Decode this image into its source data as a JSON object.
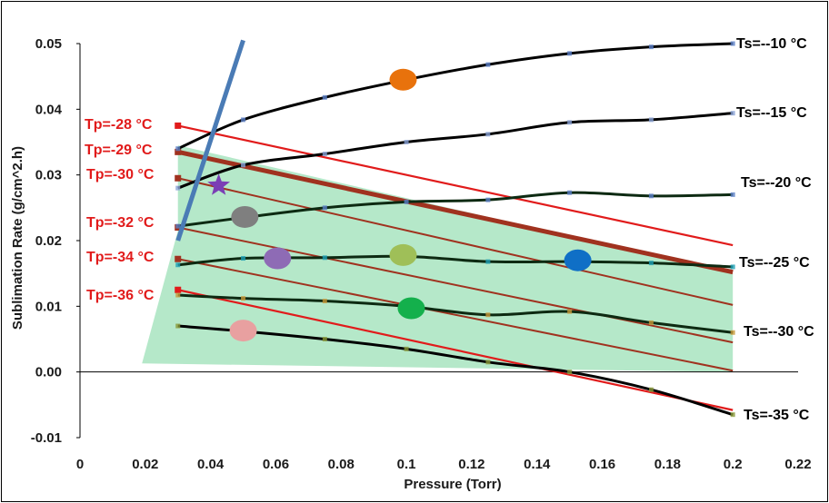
{
  "chart_data": {
    "type": "scatter",
    "xlabel": "Pressure (Torr)",
    "ylabel": "Sublimation Rate (g/cm^2.h)",
    "xlim": [
      0,
      0.22
    ],
    "ylim": [
      -0.01,
      0.05
    ],
    "x_ticks": [
      "0",
      "0.02",
      "0.04",
      "0.06",
      "0.08",
      "0.1",
      "0.12",
      "0.14",
      "0.16",
      "0.18",
      "0.2",
      "0.22"
    ],
    "y_ticks": [
      "-0.01",
      "0.00",
      "0.01",
      "0.02",
      "0.03",
      "0.04",
      "0.05"
    ],
    "grid": false,
    "colors": {
      "ts_curve": "#000000",
      "tp_line": "#e11b1b",
      "tp_line_dark": "#a0321f",
      "region_fill": "#a8e4c0",
      "choke_line": "#4a7bb5",
      "marker_ts": "#6b8cc8"
    },
    "feasible_region": [
      [
        0.019,
        0.0013
      ],
      [
        0.03,
        0.0215
      ],
      [
        0.03,
        0.0345
      ],
      [
        0.2,
        0.015
      ],
      [
        0.2,
        0.0
      ]
    ],
    "choke_line": {
      "x": [
        0.03,
        0.05
      ],
      "y": [
        0.02,
        0.0505
      ]
    },
    "ts_series": [
      {
        "name": "Ts=--10 °C",
        "x": [
          0.03,
          0.05,
          0.075,
          0.1,
          0.125,
          0.15,
          0.175,
          0.2
        ],
        "y": [
          0.034,
          0.0384,
          0.0418,
          0.0445,
          0.0468,
          0.0485,
          0.0495,
          0.05
        ]
      },
      {
        "name": "Ts=--15 °C",
        "x": [
          0.03,
          0.05,
          0.075,
          0.1,
          0.125,
          0.15,
          0.175,
          0.2
        ],
        "y": [
          0.028,
          0.0315,
          0.0332,
          0.035,
          0.0362,
          0.038,
          0.0384,
          0.0394
        ]
      },
      {
        "name": "Ts=--20 °C",
        "x": [
          0.03,
          0.05,
          0.075,
          0.1,
          0.125,
          0.15,
          0.175,
          0.2
        ],
        "y": [
          0.0222,
          0.0235,
          0.025,
          0.0259,
          0.0262,
          0.0273,
          0.0268,
          0.027
        ]
      },
      {
        "name": "Ts=--25 °C",
        "x": [
          0.03,
          0.05,
          0.075,
          0.1,
          0.125,
          0.15,
          0.175,
          0.2
        ],
        "y": [
          0.0163,
          0.0173,
          0.0174,
          0.0176,
          0.0168,
          0.0168,
          0.0166,
          0.016
        ]
      },
      {
        "name": "Ts=--30 °C",
        "x": [
          0.03,
          0.05,
          0.075,
          0.1,
          0.125,
          0.15,
          0.175,
          0.2
        ],
        "y": [
          0.0117,
          0.0112,
          0.0108,
          0.01,
          0.0087,
          0.0092,
          0.0075,
          0.006
        ]
      },
      {
        "name": "Ts=-35 °C",
        "x": [
          0.03,
          0.05,
          0.075,
          0.1,
          0.125,
          0.15,
          0.175,
          0.2
        ],
        "y": [
          0.007,
          0.0062,
          0.005,
          0.0035,
          0.0015,
          0.0,
          -0.0027,
          -0.0065
        ]
      }
    ],
    "tp_series": [
      {
        "name": "Tp=-28 °C",
        "x": [
          0.03,
          0.2
        ],
        "y": [
          0.0375,
          0.0193
        ]
      },
      {
        "name": "Tp=-29 °C",
        "x": [
          0.03,
          0.2
        ],
        "y": [
          0.0335,
          0.0152
        ]
      },
      {
        "name": "Tp=-30 °C",
        "x": [
          0.03,
          0.2
        ],
        "y": [
          0.0295,
          0.0102
        ]
      },
      {
        "name": "Tp=-32 °C",
        "x": [
          0.03,
          0.2
        ],
        "y": [
          0.022,
          0.0045
        ]
      },
      {
        "name": "Tp=-34 °C",
        "x": [
          0.03,
          0.2
        ],
        "y": [
          0.0172,
          0.0002
        ]
      },
      {
        "name": "Tp=-36 °C",
        "x": [
          0.03,
          0.2
        ],
        "y": [
          0.0125,
          -0.0058
        ]
      }
    ],
    "highlight_points": [
      {
        "x": 0.099,
        "y": 0.0445,
        "color": "#e8720c",
        "shape": "ellipse"
      },
      {
        "x": 0.0505,
        "y": 0.0236,
        "color": "#7f7f7f",
        "shape": "ellipse"
      },
      {
        "x": 0.0605,
        "y": 0.0173,
        "color": "#8e6bb5",
        "shape": "ellipse"
      },
      {
        "x": 0.099,
        "y": 0.0178,
        "color": "#9fbf58",
        "shape": "ellipse"
      },
      {
        "x": 0.1525,
        "y": 0.017,
        "color": "#0f6fc6",
        "shape": "ellipse"
      },
      {
        "x": 0.1015,
        "y": 0.0097,
        "color": "#14b04c",
        "shape": "ellipse"
      },
      {
        "x": 0.05,
        "y": 0.0063,
        "color": "#e8a0a0",
        "shape": "ellipse"
      },
      {
        "x": 0.0425,
        "y": 0.0284,
        "color": "#7b3fb5",
        "shape": "star"
      }
    ]
  }
}
